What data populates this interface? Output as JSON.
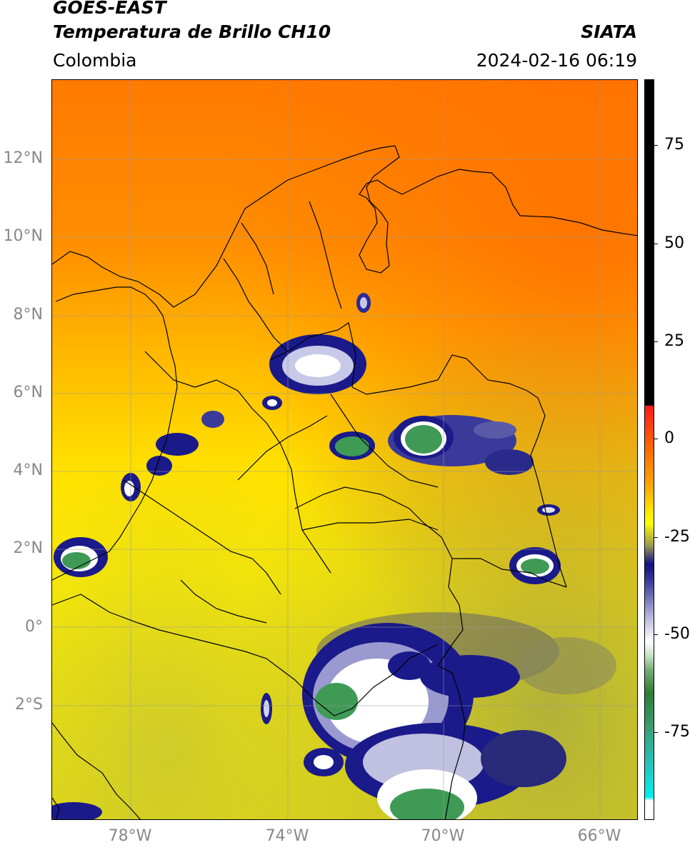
{
  "header": {
    "satellite": "GOES-EAST",
    "product": "Temperatura de Brillo CH10",
    "organization": "SIATA",
    "region": "Colombia",
    "timestamp": "2024-02-16 06:19"
  },
  "map": {
    "lat_labels": [
      "12°N",
      "10°N",
      "8°N",
      "6°N",
      "4°N",
      "2°N",
      "0°",
      "2°S"
    ],
    "lon_labels": [
      "78°W",
      "74°W",
      "70°W",
      "66°W"
    ],
    "colors": {
      "warm_orange": "#ff7a00",
      "yellow": "#ffee00",
      "olive": "#b8b830",
      "navy": "#1a1a8a",
      "white": "#ffffff",
      "green": "#3f9a55"
    }
  },
  "colorbar": {
    "labels": [
      "75",
      "50",
      "25",
      "0",
      "-25",
      "-50",
      "-75"
    ]
  }
}
